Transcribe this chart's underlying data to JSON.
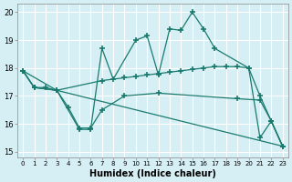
{
  "xlabel": "Humidex (Indice chaleur)",
  "xlim": [
    -0.5,
    23.5
  ],
  "ylim": [
    14.8,
    20.3
  ],
  "yticks": [
    15,
    16,
    17,
    18,
    19,
    20
  ],
  "xticks": [
    0,
    1,
    2,
    3,
    4,
    5,
    6,
    7,
    8,
    9,
    10,
    11,
    12,
    13,
    14,
    15,
    16,
    17,
    18,
    19,
    20,
    21,
    22,
    23
  ],
  "bg_color": "#d6eff5",
  "grid_color": "#ffffff",
  "line_color": "#1a7a6e",
  "lines": [
    {
      "x": [
        0,
        1,
        2,
        3,
        5,
        6,
        7,
        8,
        10,
        11,
        12,
        13,
        14,
        15,
        16,
        17,
        20,
        21,
        22,
        23
      ],
      "y": [
        17.9,
        17.3,
        17.3,
        17.2,
        15.8,
        15.8,
        18.7,
        17.6,
        19.0,
        19.15,
        17.75,
        19.4,
        19.35,
        20.0,
        19.4,
        18.7,
        18.0,
        15.5,
        16.1,
        15.2
      ]
    },
    {
      "x": [
        0,
        1,
        3,
        7,
        9,
        10,
        11,
        12,
        13,
        14,
        15,
        16,
        17,
        18,
        19,
        20,
        21,
        22,
        23
      ],
      "y": [
        17.9,
        17.3,
        17.2,
        17.55,
        17.65,
        17.7,
        17.75,
        17.8,
        17.85,
        17.9,
        17.95,
        18.0,
        18.05,
        18.05,
        18.05,
        18.0,
        17.0,
        16.1,
        15.2
      ]
    },
    {
      "x": [
        0,
        1,
        3,
        4,
        5,
        6,
        7,
        9,
        12,
        19,
        21,
        22,
        23
      ],
      "y": [
        17.9,
        17.3,
        17.2,
        16.6,
        15.85,
        15.85,
        16.5,
        17.0,
        17.1,
        16.9,
        16.85,
        16.1,
        15.2
      ]
    },
    {
      "x": [
        0,
        3,
        23
      ],
      "y": [
        17.9,
        17.2,
        15.2
      ]
    }
  ]
}
